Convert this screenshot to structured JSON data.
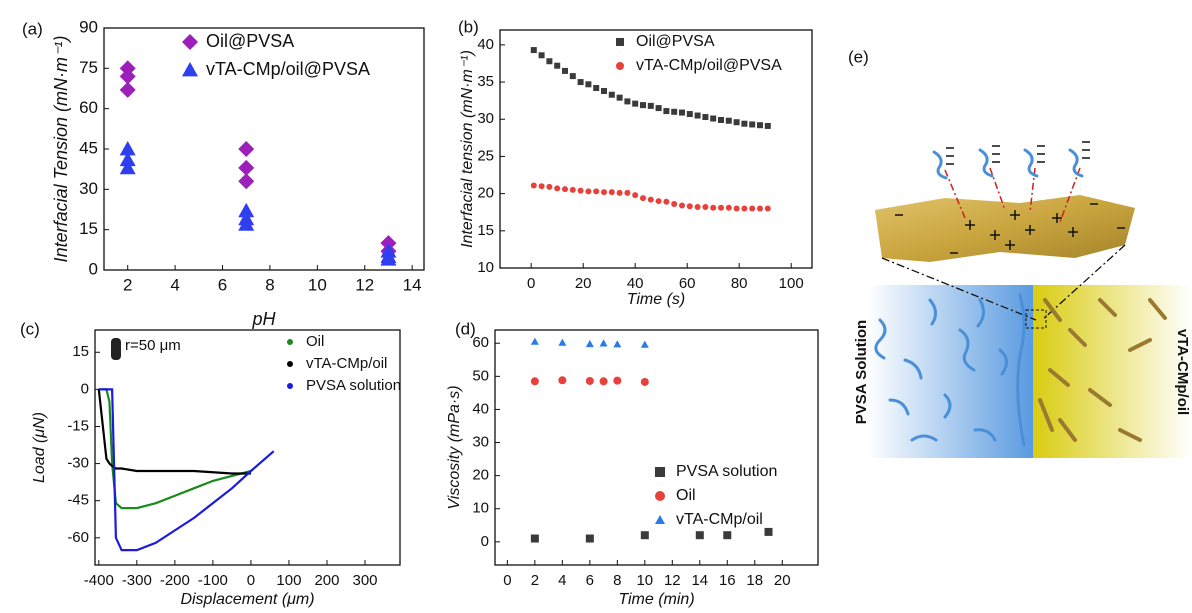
{
  "chart_data": [
    {
      "type": "scatter",
      "panel_label": "(a)",
      "x_label": "pH",
      "y_label": "Interfacial Tension (mN·m⁻¹)",
      "xlim": [
        1,
        14.5
      ],
      "xticks": [
        2,
        4,
        6,
        8,
        10,
        12,
        14
      ],
      "ylim": [
        0,
        90
      ],
      "yticks": [
        0,
        15,
        30,
        45,
        60,
        75,
        90
      ],
      "legend": "upper center",
      "series": [
        {
          "name": "Oil@PVSA",
          "color": "#9b1fb8",
          "marker": "diamond",
          "x": [
            2,
            2,
            2,
            7,
            7,
            7,
            13,
            13
          ],
          "values": [
            75,
            72,
            67,
            45,
            38,
            33,
            10,
            7
          ]
        },
        {
          "name": "vTA-CMp/oil@PVSA",
          "color": "#2f3ff0",
          "marker": "triangle",
          "x": [
            2,
            2,
            2,
            7,
            7,
            7,
            13,
            13,
            13
          ],
          "values": [
            45,
            41,
            38,
            22,
            19,
            17,
            7,
            5,
            4
          ]
        }
      ]
    },
    {
      "type": "scatter",
      "panel_label": "(b)",
      "x_label": "Time (s)",
      "y_label": "Interfacial tension (mN·m⁻¹)",
      "xlim": [
        -12,
        108
      ],
      "xticks": [
        0,
        20,
        40,
        60,
        80,
        100
      ],
      "ylim": [
        10,
        42
      ],
      "yticks": [
        10,
        15,
        20,
        25,
        30,
        35,
        40
      ],
      "legend": "upper right",
      "series": [
        {
          "name": "Oil@PVSA",
          "color": "#3a3a3a",
          "marker": "square",
          "x": [
            1,
            4,
            7,
            10,
            13,
            16,
            19,
            22,
            25,
            28,
            31,
            34,
            37,
            40,
            43,
            46,
            49,
            52,
            55,
            58,
            61,
            64,
            67,
            70,
            73,
            76,
            79,
            82,
            85,
            88,
            91
          ],
          "values": [
            39.3,
            38.6,
            37.8,
            37.2,
            36.5,
            35.8,
            35,
            34.7,
            34.2,
            33.8,
            33.3,
            32.9,
            32.4,
            32.1,
            31.9,
            31.8,
            31.5,
            31.1,
            31,
            30.9,
            30.7,
            30.5,
            30.3,
            30.1,
            29.9,
            29.8,
            29.6,
            29.4,
            29.3,
            29.2,
            29.1
          ]
        },
        {
          "name": "vTA-CMp/oil@PVSA",
          "color": "#e8403a",
          "marker": "circle",
          "x": [
            1,
            4,
            7,
            10,
            13,
            16,
            19,
            22,
            25,
            28,
            31,
            34,
            37,
            40,
            43,
            46,
            49,
            52,
            55,
            58,
            61,
            64,
            67,
            70,
            73,
            76,
            79,
            82,
            85,
            88,
            91
          ],
          "values": [
            21.1,
            21,
            20.9,
            20.7,
            20.6,
            20.5,
            20.4,
            20.3,
            20.3,
            20.2,
            20.2,
            20.1,
            20.1,
            19.8,
            19.4,
            19.2,
            19,
            18.9,
            18.6,
            18.4,
            18.3,
            18.2,
            18.2,
            18.1,
            18.1,
            18.1,
            18,
            18,
            18,
            18,
            18
          ]
        }
      ]
    },
    {
      "type": "line",
      "panel_label": "(c)",
      "x_label": "Displacement (μm)",
      "y_label": "Load (μN)",
      "annotation": "r=50 μm",
      "xlim": [
        -410,
        392
      ],
      "xticks": [
        -400,
        -300,
        -200,
        -100,
        0,
        100,
        200,
        300
      ],
      "ylim": [
        -71,
        24
      ],
      "yticks": [
        -60,
        -45,
        -30,
        -15,
        0,
        15
      ],
      "legend": "upper right",
      "x": [
        -400,
        -380,
        -372,
        -365,
        -355,
        -340,
        -300,
        -250,
        -200,
        -150,
        -100,
        -50,
        0,
        60
      ],
      "series": [
        {
          "name": "Oil",
          "color": "#1a8a1a",
          "values": [
            0,
            0,
            -5,
            -30,
            -46,
            -48,
            -48,
            -46,
            -43,
            -40,
            -37,
            -35,
            -33,
            null
          ]
        },
        {
          "name": "vTA-CMp/oil",
          "color": "#000000",
          "values": [
            0,
            -28,
            -30,
            -31,
            -32,
            -32,
            -33,
            -33,
            -33,
            -33,
            -33.5,
            -34,
            -34,
            null
          ]
        },
        {
          "name": "PVSA solution",
          "color": "#1a1ae0",
          "values": [
            0,
            0,
            0,
            0,
            -60,
            -65,
            -65,
            -62,
            -57,
            -52,
            -46,
            -40,
            -33,
            -25
          ]
        }
      ]
    },
    {
      "type": "scatter",
      "panel_label": "(d)",
      "x_label": "Time (min)",
      "y_label": "Viscosity (mPa·s)",
      "xlim": [
        -0.9,
        22.6
      ],
      "xticks": [
        0,
        2,
        4,
        6,
        8,
        10,
        12,
        14,
        16,
        18,
        20
      ],
      "ylim": [
        -7,
        64
      ],
      "yticks": [
        0,
        10,
        20,
        30,
        40,
        50,
        60
      ],
      "legend": "lower right",
      "series": [
        {
          "name": "PVSA solution",
          "color": "#3a3a3a",
          "marker": "square",
          "x": [
            2,
            6,
            10,
            14,
            16,
            19
          ],
          "values": [
            1,
            1,
            2,
            2,
            2,
            3
          ]
        },
        {
          "name": "Oil",
          "color": "#e8403a",
          "marker": "circle",
          "x": [
            2,
            4,
            6,
            7,
            8,
            10
          ],
          "values": [
            48.5,
            48.8,
            48.6,
            48.5,
            48.7,
            48.3
          ]
        },
        {
          "name": "vTA-CMp/oil",
          "color": "#2a7be8",
          "marker": "triangle",
          "x": [
            2,
            4,
            6,
            7,
            8,
            10
          ],
          "values": [
            60.5,
            60.2,
            59.8,
            60,
            59.7,
            59.6
          ]
        }
      ]
    }
  ],
  "diagram": {
    "panel_label": "(e)",
    "left_label": "PVSA Solution",
    "right_label": "vTA-CMp/oil"
  }
}
